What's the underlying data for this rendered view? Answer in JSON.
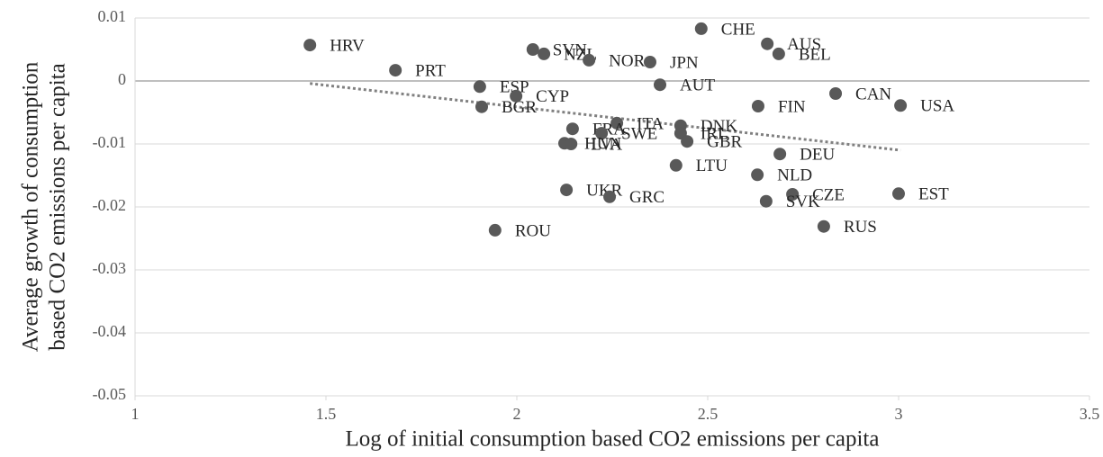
{
  "chart_data": {
    "type": "scatter",
    "xlabel": "Log of initial consumption based CO2 emissions per capita",
    "ylabel": [
      "Average growth of consumption",
      "based CO2 emissions per capita"
    ],
    "xlim": [
      1,
      3.5
    ],
    "xticks": [
      1,
      1.5,
      2,
      2.5,
      3,
      3.5
    ],
    "ylim": [
      -0.05,
      0.01
    ],
    "yticks": [
      0.01,
      0,
      -0.01,
      -0.02,
      -0.03,
      -0.04,
      -0.05
    ],
    "grid": true,
    "series": [
      {
        "color": "#595959",
        "labels": [
          "HRV",
          "PRT",
          "ESP",
          "BGR",
          "CYP",
          "SVN",
          "NZL",
          "NOR",
          "JPN",
          "CHE",
          "AUS",
          "BEL",
          "AUT",
          "CAN",
          "USA",
          "FIN",
          "DNK",
          "ITA",
          "FRA",
          "SWE",
          "HUN",
          "LVA",
          "IRL",
          "GBR",
          "DEU",
          "LTU",
          "NLD",
          "CZE",
          "SVK",
          "EST",
          "RUS",
          "UKR",
          "GRC",
          "ROU"
        ],
        "x": [
          1.458,
          1.682,
          1.903,
          1.908,
          1.998,
          2.042,
          2.071,
          2.189,
          2.349,
          2.483,
          2.656,
          2.686,
          2.375,
          2.835,
          3.005,
          2.632,
          2.429,
          2.262,
          2.146,
          2.222,
          2.125,
          2.142,
          2.429,
          2.446,
          2.689,
          2.417,
          2.63,
          2.722,
          2.653,
          3.0,
          2.804,
          2.13,
          2.243,
          1.943
        ],
        "values": [
          0.0057,
          0.0017,
          -0.0009,
          -0.0041,
          -0.0024,
          0.005,
          0.0043,
          0.0033,
          0.003,
          0.0083,
          0.0059,
          0.0043,
          -0.0006,
          -0.002,
          -0.0039,
          -0.004,
          -0.0071,
          -0.0067,
          -0.0076,
          -0.0083,
          -0.0099,
          -0.01,
          -0.0083,
          -0.0096,
          -0.0116,
          -0.0134,
          -0.0149,
          -0.018,
          -0.0191,
          -0.0179,
          -0.0231,
          -0.0173,
          -0.0184,
          -0.0237
        ]
      }
    ],
    "trendline": {
      "color": "#808080",
      "x": [
        1.458,
        3.005
      ],
      "values": [
        -0.0004,
        -0.011
      ]
    }
  }
}
